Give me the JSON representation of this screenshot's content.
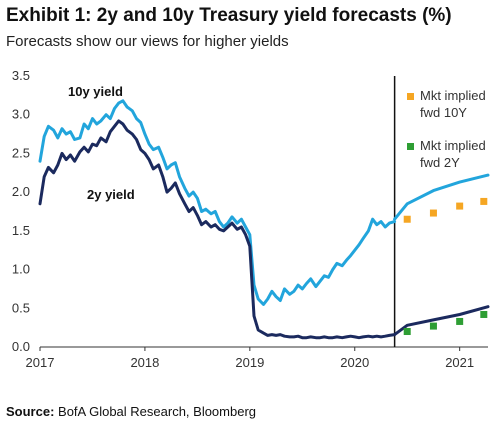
{
  "header": {
    "title": "Exhibit 1: 2y and 10y Treasury yield forecasts (%)",
    "subtitle": "Forecasts show our views for higher yields"
  },
  "footer": {
    "source_label": "Source:",
    "source_text": " BofA Global Research, Bloomberg"
  },
  "chart_data": {
    "type": "line",
    "xlabel": "",
    "ylabel": "",
    "xlim": [
      2017.0,
      2021.27
    ],
    "ylim": [
      0,
      3.5
    ],
    "x_ticks": [
      2017,
      2018,
      2019,
      2020,
      2021
    ],
    "y_ticks": [
      "0.0",
      "0.5",
      "1.0",
      "1.5",
      "2.0",
      "2.5",
      "3.0",
      "3.5"
    ],
    "grid": false,
    "forecast_start": 2020.38,
    "series": [
      {
        "name": "10y yield",
        "color": "#22a5dc",
        "x": [
          2017.0,
          2017.04,
          2017.08,
          2017.13,
          2017.17,
          2017.21,
          2017.25,
          2017.29,
          2017.33,
          2017.38,
          2017.42,
          2017.46,
          2017.5,
          2017.54,
          2017.58,
          2017.63,
          2017.67,
          2017.71,
          2017.75,
          2017.79,
          2017.83,
          2017.88,
          2017.92,
          2017.96,
          2018.0,
          2018.04,
          2018.08,
          2018.13,
          2018.17,
          2018.21,
          2018.25,
          2018.29,
          2018.33,
          2018.38,
          2018.42,
          2018.46,
          2018.5,
          2018.54,
          2018.58,
          2018.63,
          2018.67,
          2018.71,
          2018.75,
          2018.79,
          2018.83,
          2018.88,
          2018.92,
          2018.96,
          2019.0,
          2019.04,
          2019.08,
          2019.13,
          2019.17,
          2019.21,
          2019.25,
          2019.29,
          2019.33,
          2019.38,
          2019.42,
          2019.46,
          2019.5,
          2019.54,
          2019.58,
          2019.63,
          2019.67,
          2019.71,
          2019.75,
          2019.79,
          2019.83,
          2019.88,
          2019.92,
          2019.96,
          2020.0,
          2020.04,
          2020.08,
          2020.13,
          2020.17,
          2020.21,
          2020.25,
          2020.29,
          2020.33,
          2020.38
        ],
        "values": [
          2.4,
          2.72,
          2.85,
          2.8,
          2.7,
          2.82,
          2.75,
          2.78,
          2.68,
          2.7,
          2.88,
          2.82,
          2.95,
          2.88,
          2.92,
          3.0,
          2.95,
          3.08,
          3.15,
          3.18,
          3.1,
          3.05,
          2.95,
          2.9,
          2.75,
          2.62,
          2.55,
          2.58,
          2.45,
          2.3,
          2.35,
          2.38,
          2.2,
          2.05,
          1.95,
          2.0,
          1.92,
          1.75,
          1.78,
          1.72,
          1.75,
          1.62,
          1.55,
          1.6,
          1.68,
          1.6,
          1.65,
          1.55,
          1.45,
          0.8,
          0.62,
          0.55,
          0.62,
          0.72,
          0.65,
          0.6,
          0.75,
          0.68,
          0.72,
          0.8,
          0.75,
          0.82,
          0.88,
          0.78,
          0.85,
          0.92,
          0.9,
          1.0,
          1.08,
          1.05,
          1.12,
          1.18,
          1.25,
          1.32,
          1.4,
          1.5,
          1.65,
          1.58,
          1.62,
          1.55,
          1.6,
          1.62
        ]
      },
      {
        "name": "2y yield",
        "color": "#1b2a5e",
        "x": [
          2017.0,
          2017.04,
          2017.08,
          2017.13,
          2017.17,
          2017.21,
          2017.25,
          2017.29,
          2017.33,
          2017.38,
          2017.42,
          2017.46,
          2017.5,
          2017.54,
          2017.58,
          2017.63,
          2017.67,
          2017.71,
          2017.75,
          2017.79,
          2017.83,
          2017.88,
          2017.92,
          2017.96,
          2018.0,
          2018.04,
          2018.08,
          2018.13,
          2018.17,
          2018.21,
          2018.25,
          2018.29,
          2018.33,
          2018.38,
          2018.42,
          2018.46,
          2018.5,
          2018.54,
          2018.58,
          2018.63,
          2018.67,
          2018.71,
          2018.75,
          2018.79,
          2018.83,
          2018.88,
          2018.92,
          2018.96,
          2019.0,
          2019.04,
          2019.08,
          2019.13,
          2019.17,
          2019.21,
          2019.25,
          2019.29,
          2019.33,
          2019.38,
          2019.42,
          2019.46,
          2019.5,
          2019.54,
          2019.58,
          2019.63,
          2019.67,
          2019.71,
          2019.75,
          2019.79,
          2019.83,
          2019.88,
          2019.92,
          2019.96,
          2020.0,
          2020.04,
          2020.08,
          2020.13,
          2020.17,
          2020.21,
          2020.25,
          2020.29,
          2020.33,
          2020.38
        ],
        "values": [
          1.85,
          2.2,
          2.32,
          2.25,
          2.35,
          2.5,
          2.42,
          2.48,
          2.4,
          2.52,
          2.58,
          2.52,
          2.62,
          2.6,
          2.7,
          2.65,
          2.78,
          2.85,
          2.92,
          2.88,
          2.8,
          2.75,
          2.68,
          2.55,
          2.5,
          2.42,
          2.3,
          2.35,
          2.2,
          2.0,
          2.05,
          2.12,
          1.98,
          1.85,
          1.75,
          1.8,
          1.7,
          1.58,
          1.62,
          1.55,
          1.58,
          1.52,
          1.5,
          1.55,
          1.6,
          1.52,
          1.55,
          1.45,
          1.3,
          0.4,
          0.22,
          0.18,
          0.15,
          0.16,
          0.15,
          0.16,
          0.14,
          0.13,
          0.13,
          0.14,
          0.12,
          0.12,
          0.13,
          0.12,
          0.12,
          0.13,
          0.12,
          0.12,
          0.13,
          0.12,
          0.13,
          0.14,
          0.13,
          0.12,
          0.13,
          0.14,
          0.13,
          0.14,
          0.13,
          0.14,
          0.15,
          0.16
        ]
      },
      {
        "name": "10y forecast",
        "color": "#22a5dc",
        "x": [
          2020.38,
          2020.5,
          2020.75,
          2021.0,
          2021.27
        ],
        "values": [
          1.65,
          1.85,
          2.02,
          2.13,
          2.22
        ]
      },
      {
        "name": "2y forecast",
        "color": "#1b2a5e",
        "x": [
          2020.38,
          2020.5,
          2020.75,
          2021.0,
          2021.27
        ],
        "values": [
          0.16,
          0.28,
          0.35,
          0.42,
          0.52
        ]
      }
    ],
    "markers": [
      {
        "name": "Mkt implied fwd 10Y",
        "color": "#f5a623",
        "x": [
          2020.5,
          2020.75,
          2021.0,
          2021.23
        ],
        "values": [
          1.65,
          1.73,
          1.82,
          1.88
        ]
      },
      {
        "name": "Mkt implied fwd 2Y",
        "color": "#2e9e34",
        "x": [
          2020.5,
          2020.75,
          2021.0,
          2021.23
        ],
        "values": [
          0.2,
          0.27,
          0.33,
          0.42
        ]
      }
    ],
    "series_labels": [
      "10y yield",
      "2y yield"
    ],
    "legend": {
      "placement": "right",
      "entries": [
        {
          "line1": "Mkt implied",
          "line2": "fwd 10Y",
          "color": "#f5a623"
        },
        {
          "line1": "Mkt implied",
          "line2": "fwd 2Y",
          "color": "#2e9e34"
        }
      ]
    }
  }
}
